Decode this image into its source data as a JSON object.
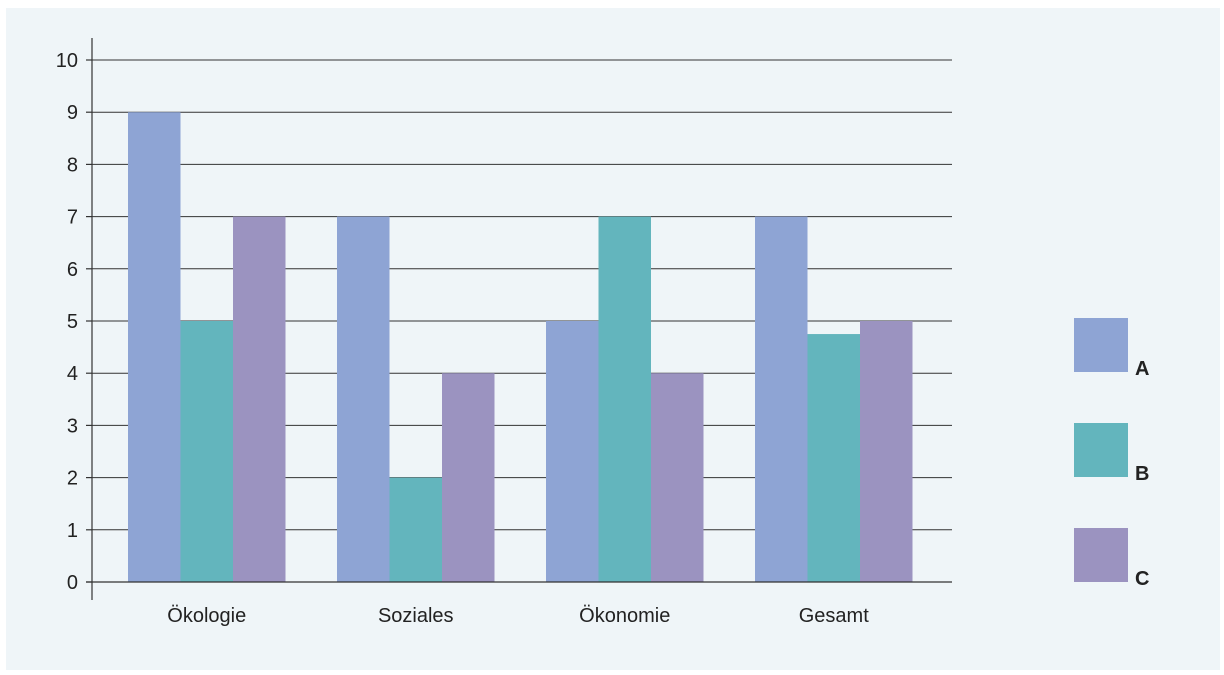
{
  "chart_data": {
    "type": "bar",
    "categories": [
      "Ökologie",
      "Soziales",
      "Ökonomie",
      "Gesamt"
    ],
    "series": [
      {
        "name": "A",
        "values": [
          9,
          7,
          5,
          7
        ],
        "color": "#8ea4d4"
      },
      {
        "name": "B",
        "values": [
          5,
          2,
          7,
          4.75
        ],
        "color": "#63b5bd"
      },
      {
        "name": "C",
        "values": [
          7,
          4,
          4,
          5
        ],
        "color": "#9b93c0"
      }
    ],
    "title": "",
    "xlabel": "",
    "ylabel": "",
    "ylim": [
      0,
      10
    ],
    "yticks": [
      "0",
      "1",
      "2",
      "3",
      "4",
      "5",
      "6",
      "7",
      "8",
      "9",
      "10"
    ],
    "grid": true,
    "legend": "right",
    "background": "#eff5f8"
  }
}
